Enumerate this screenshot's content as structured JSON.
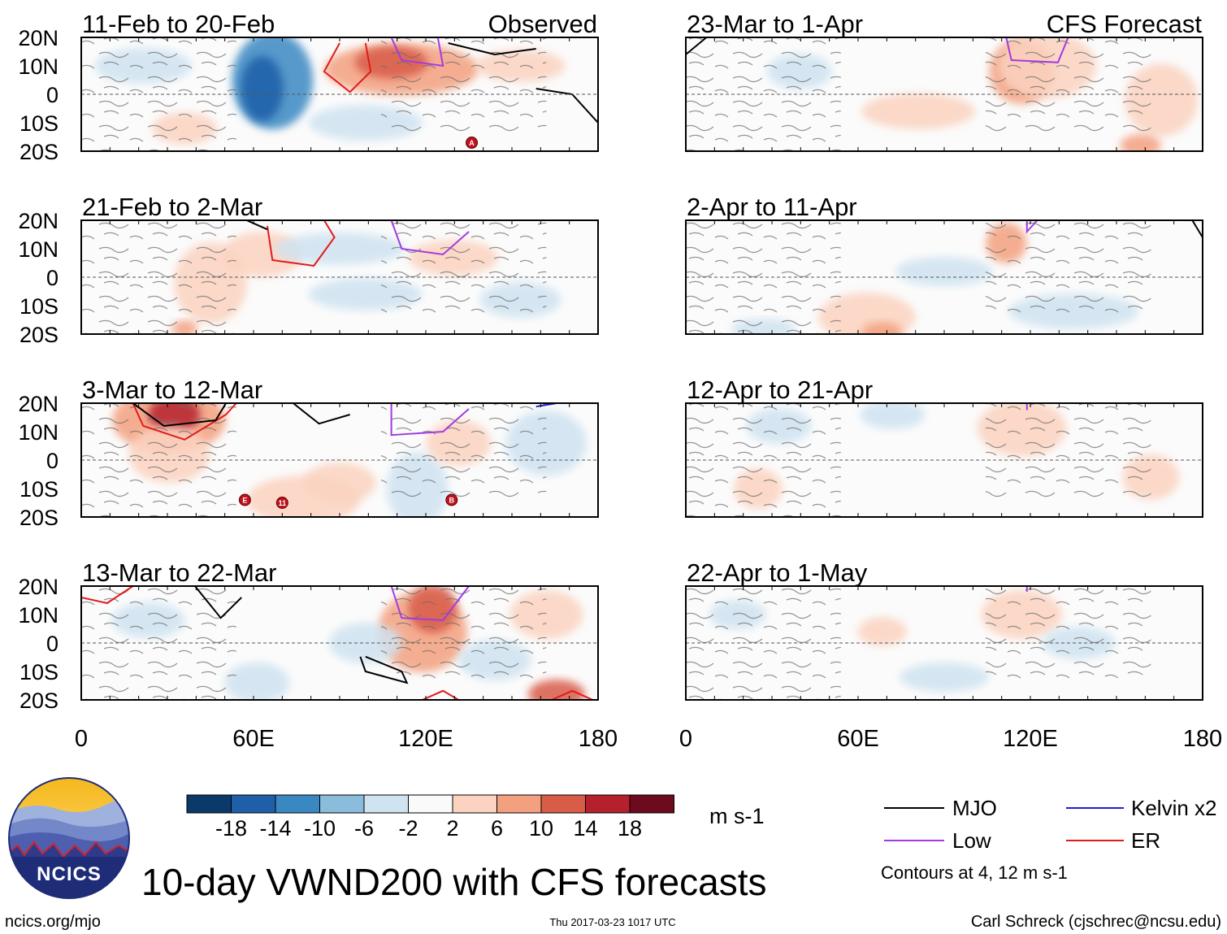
{
  "chart_data": {
    "type": "heatmap",
    "title": "10-day VWND200 with CFS forecasts",
    "variable": "VWND200",
    "units": "m s-1",
    "x_ticks": [
      "0",
      "60E",
      "120E",
      "180"
    ],
    "y_ticks": [
      "20N",
      "10N",
      "0",
      "10S",
      "20S"
    ],
    "xlim": [
      0,
      180
    ],
    "ylim": [
      -20,
      20
    ],
    "columns": [
      {
        "header": "Observed",
        "panels": [
          "11-Feb to 20-Feb",
          "21-Feb to 2-Mar",
          "3-Mar to 12-Mar",
          "13-Mar to 22-Mar"
        ]
      },
      {
        "header": "CFS Forecast",
        "panels": [
          "23-Mar to 1-Apr",
          "2-Apr to 11-Apr",
          "12-Apr to 21-Apr",
          "22-Apr to 1-May"
        ]
      }
    ],
    "colorbar": {
      "labels": [
        "-18",
        "-14",
        "-10",
        "-6",
        "-2",
        "2",
        "6",
        "10",
        "14",
        "18"
      ],
      "colors": [
        "#0b3a6a",
        "#1f5fa8",
        "#3a88c2",
        "#8bbcdc",
        "#cfe3f1",
        "#fafafa",
        "#fbd3c0",
        "#f3a07f",
        "#d85c48",
        "#b5202e",
        "#6e0a1d"
      ]
    },
    "legend": [
      {
        "name": "MJO",
        "color": "#000000"
      },
      {
        "name": "Kelvin x2",
        "color": "#1f1fd0"
      },
      {
        "name": "Low",
        "color": "#a23be0"
      },
      {
        "name": "ER",
        "color": "#e01b1b"
      }
    ],
    "contour_note": "Contours at 4, 12 m s-1",
    "storm_markers": [
      {
        "panel": "11-Feb to 20-Feb",
        "label": "A",
        "lon": 136,
        "lat": -17
      },
      {
        "panel": "3-Mar to 12-Mar",
        "label": "E",
        "lon": 57,
        "lat": -14
      },
      {
        "panel": "3-Mar to 12-Mar",
        "label": "11",
        "lon": 70,
        "lat": -15
      },
      {
        "panel": "3-Mar to 12-Mar",
        "label": "B",
        "lon": 129,
        "lat": -14
      }
    ]
  },
  "footer": {
    "logo_text": "NCICS",
    "url": "ncics.org/mjo",
    "timestamp": "Thu 2017-03-23 1017 UTC",
    "credit": "Carl Schreck (cjschrec@ncsu.edu)"
  }
}
